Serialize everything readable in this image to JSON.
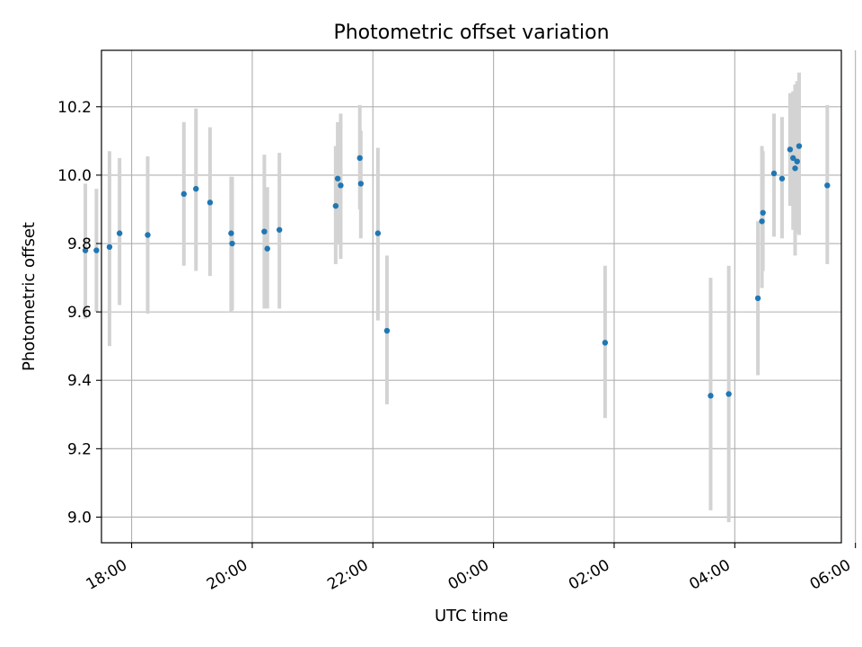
{
  "chart_data": {
    "type": "scatter",
    "title": "Photometric offset variation",
    "xlabel": "UTC time",
    "ylabel": "Photometric offset",
    "x_ticks": [
      "18:00",
      "20:00",
      "22:00",
      "00:00",
      "02:00",
      "04:00",
      "06:00"
    ],
    "y_ticks": [
      "9.0",
      "9.2",
      "9.4",
      "9.6",
      "9.8",
      "10.0",
      "10.2"
    ],
    "xlim": [
      "17:30",
      "05:46"
    ],
    "ylim": [
      8.925,
      10.365
    ],
    "grid": true,
    "point_color": "#1f77b4",
    "errorbar_color": "#d3d3d3",
    "points": [
      {
        "x": "17:14",
        "y": 9.78,
        "ylow": 9.58,
        "yhigh": 9.975
      },
      {
        "x": "17:25",
        "y": 9.78,
        "ylow": 9.6,
        "yhigh": 9.96
      },
      {
        "x": "17:38",
        "y": 9.79,
        "ylow": 9.5,
        "yhigh": 10.07
      },
      {
        "x": "17:48",
        "y": 9.83,
        "ylow": 9.62,
        "yhigh": 10.05
      },
      {
        "x": "18:16",
        "y": 9.825,
        "ylow": 9.595,
        "yhigh": 10.055
      },
      {
        "x": "18:52",
        "y": 9.945,
        "ylow": 9.735,
        "yhigh": 10.155
      },
      {
        "x": "19:04",
        "y": 9.96,
        "ylow": 9.72,
        "yhigh": 10.195
      },
      {
        "x": "19:18",
        "y": 9.92,
        "ylow": 9.705,
        "yhigh": 10.14
      },
      {
        "x": "19:39",
        "y": 9.83,
        "ylow": 9.6,
        "yhigh": 9.995
      },
      {
        "x": "19:40",
        "y": 9.8,
        "ylow": 9.605,
        "yhigh": 9.995
      },
      {
        "x": "20:12",
        "y": 9.835,
        "ylow": 9.61,
        "yhigh": 10.06
      },
      {
        "x": "20:15",
        "y": 9.785,
        "ylow": 9.61,
        "yhigh": 9.965
      },
      {
        "x": "20:27",
        "y": 9.84,
        "ylow": 9.61,
        "yhigh": 10.065
      },
      {
        "x": "21:23",
        "y": 9.91,
        "ylow": 9.74,
        "yhigh": 10.085
      },
      {
        "x": "21:25",
        "y": 9.99,
        "ylow": 9.8,
        "yhigh": 10.155
      },
      {
        "x": "21:28",
        "y": 9.97,
        "ylow": 9.755,
        "yhigh": 10.18
      },
      {
        "x": "21:47",
        "y": 10.05,
        "ylow": 9.9,
        "yhigh": 10.205
      },
      {
        "x": "21:48",
        "y": 9.975,
        "ylow": 9.815,
        "yhigh": 10.13
      },
      {
        "x": "22:05",
        "y": 9.83,
        "ylow": 9.575,
        "yhigh": 10.08
      },
      {
        "x": "22:14",
        "y": 9.545,
        "ylow": 9.33,
        "yhigh": 9.765
      },
      {
        "x": "01:51",
        "y": 9.51,
        "ylow": 9.29,
        "yhigh": 9.735
      },
      {
        "x": "03:36",
        "y": 9.355,
        "ylow": 9.02,
        "yhigh": 9.7
      },
      {
        "x": "03:54",
        "y": 9.36,
        "ylow": 8.985,
        "yhigh": 9.735
      },
      {
        "x": "04:23",
        "y": 9.64,
        "ylow": 9.415,
        "yhigh": 9.865
      },
      {
        "x": "04:27",
        "y": 9.865,
        "ylow": 9.67,
        "yhigh": 10.085
      },
      {
        "x": "04:28",
        "y": 9.89,
        "ylow": 9.72,
        "yhigh": 10.07
      },
      {
        "x": "04:39",
        "y": 10.005,
        "ylow": 9.82,
        "yhigh": 10.18
      },
      {
        "x": "04:47",
        "y": 9.99,
        "ylow": 9.815,
        "yhigh": 10.17
      },
      {
        "x": "04:55",
        "y": 10.075,
        "ylow": 9.91,
        "yhigh": 10.24
      },
      {
        "x": "04:58",
        "y": 10.05,
        "ylow": 9.84,
        "yhigh": 10.245
      },
      {
        "x": "05:00",
        "y": 10.02,
        "ylow": 9.765,
        "yhigh": 10.265
      },
      {
        "x": "05:02",
        "y": 10.04,
        "ylow": 9.83,
        "yhigh": 10.275
      },
      {
        "x": "05:04",
        "y": 10.085,
        "ylow": 9.825,
        "yhigh": 10.3
      },
      {
        "x": "05:32",
        "y": 9.97,
        "ylow": 9.74,
        "yhigh": 10.205
      }
    ]
  }
}
